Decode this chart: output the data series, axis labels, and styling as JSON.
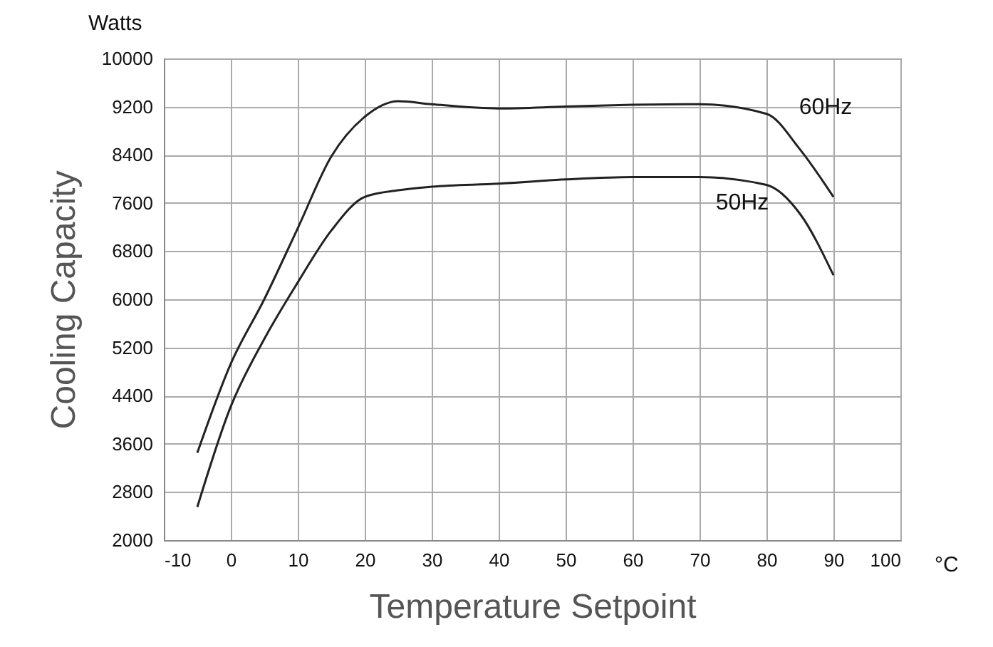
{
  "chart_data": {
    "type": "line",
    "xlabel": "Temperature Setpoint",
    "ylabel": "Cooling Capacity",
    "xlim": [
      -10,
      100
    ],
    "xticks": [
      -10,
      0,
      10,
      20,
      30,
      40,
      50,
      60,
      70,
      80,
      90,
      100
    ],
    "ylim": [
      2000,
      10000
    ],
    "yticks": [
      2000,
      2800,
      3600,
      4400,
      5200,
      6000,
      6800,
      7600,
      8400,
      9200,
      10000
    ],
    "grid": true,
    "marker": "none",
    "line_style": "solid",
    "x": [
      -5,
      0,
      5,
      10,
      15,
      20,
      25,
      30,
      40,
      50,
      60,
      70,
      80,
      85,
      90
    ],
    "series": [
      {
        "name": "60Hz",
        "color": "#222222",
        "values": [
          3450,
          4930,
          6000,
          7180,
          8370,
          9030,
          9290,
          9240,
          9170,
          9200,
          9230,
          9240,
          9080,
          8490,
          7700
        ]
      },
      {
        "name": "50Hz",
        "color": "#222222",
        "values": [
          2550,
          4220,
          5340,
          6280,
          7140,
          7700,
          7810,
          7870,
          7920,
          7990,
          8030,
          8030,
          7900,
          7420,
          6400
        ]
      }
    ],
    "annotations": [
      "Watts",
      "°C"
    ]
  }
}
